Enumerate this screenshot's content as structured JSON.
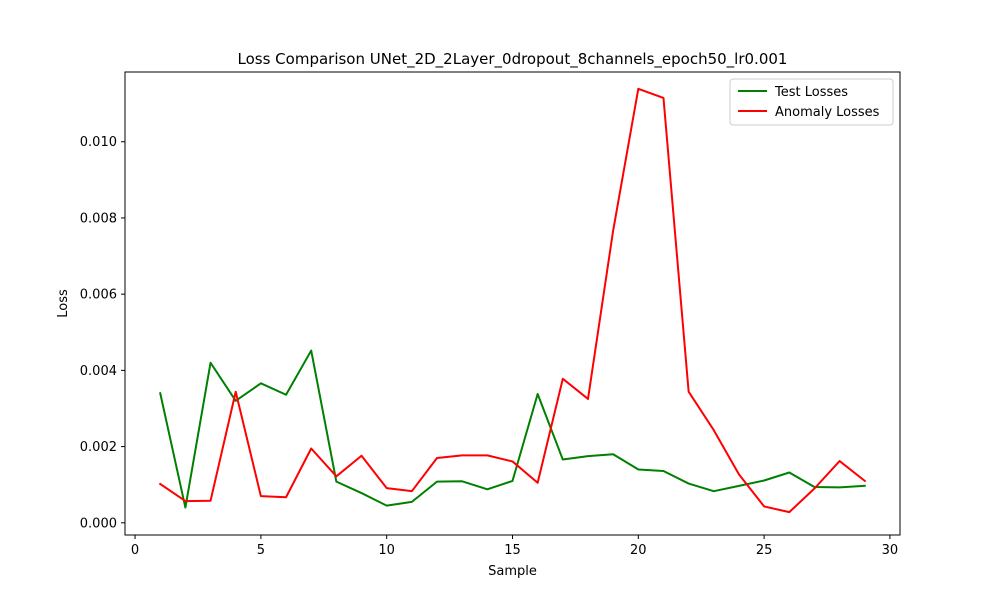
{
  "chart_data": {
    "type": "line",
    "title": "Loss Comparison UNet_2D_2Layer_0dropout_8channels_epoch50_lr0.001",
    "xlabel": "Sample",
    "ylabel": "Loss",
    "xlim": [
      -0.4,
      30.4
    ],
    "ylim": [
      -0.00032,
      0.01183
    ],
    "xticks": [
      0,
      5,
      10,
      15,
      20,
      25,
      30
    ],
    "xtick_labels": [
      "0",
      "5",
      "10",
      "15",
      "20",
      "25",
      "30"
    ],
    "yticks": [
      0.0,
      0.002,
      0.004,
      0.006,
      0.008,
      0.01
    ],
    "ytick_labels": [
      "0.000",
      "0.002",
      "0.004",
      "0.006",
      "0.008",
      "0.010"
    ],
    "grid": false,
    "legend_position": "top-right",
    "x": [
      1,
      2,
      3,
      4,
      5,
      6,
      7,
      8,
      9,
      10,
      11,
      12,
      13,
      14,
      15,
      16,
      17,
      18,
      19,
      20,
      21,
      22,
      23,
      24,
      25,
      26,
      27,
      28,
      29
    ],
    "series": [
      {
        "name": "Test Losses",
        "color": "#008000",
        "values": [
          0.0034,
          0.0004,
          0.0042,
          0.0032,
          0.00366,
          0.00336,
          0.00452,
          0.00108,
          0.00078,
          0.00045,
          0.00055,
          0.00108,
          0.00109,
          0.00088,
          0.0011,
          0.00338,
          0.00166,
          0.00175,
          0.0018,
          0.0014,
          0.00136,
          0.00103,
          0.00083,
          0.00097,
          0.00111,
          0.00132,
          0.00094,
          0.00093,
          0.00097
        ]
      },
      {
        "name": "Anomaly Losses",
        "color": "#ff0000",
        "values": [
          0.00102,
          0.00057,
          0.00058,
          0.00344,
          0.0007,
          0.00067,
          0.00195,
          0.00122,
          0.00176,
          0.00091,
          0.00083,
          0.0017,
          0.00177,
          0.00177,
          0.00161,
          0.00105,
          0.00378,
          0.00325,
          0.00767,
          0.01139,
          0.01115,
          0.00344,
          0.00243,
          0.00127,
          0.00043,
          0.00028,
          0.0009,
          0.00162,
          0.0011
        ]
      }
    ]
  }
}
